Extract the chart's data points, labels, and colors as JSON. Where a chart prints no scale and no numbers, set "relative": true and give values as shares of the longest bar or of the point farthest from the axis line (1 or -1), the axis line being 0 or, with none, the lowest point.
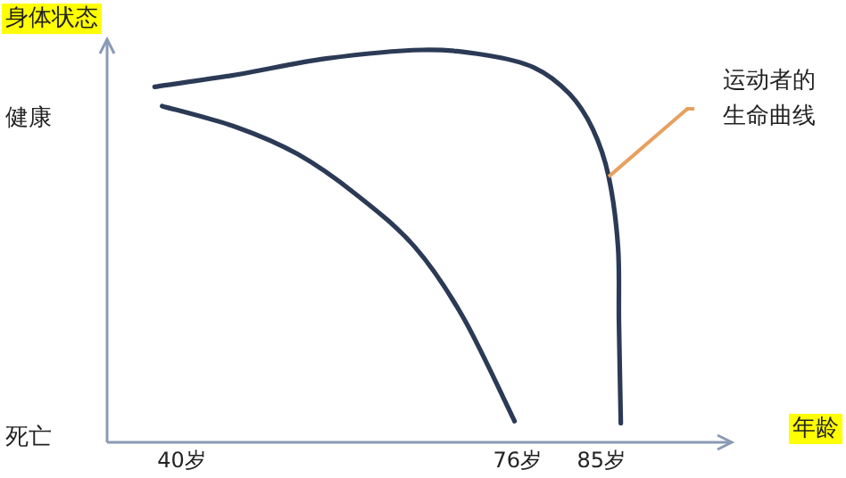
{
  "chart_data": {
    "type": "line",
    "ylabel": "身体状态",
    "xlabel": "年龄",
    "relative": true,
    "xlim": [
      32,
      99
    ],
    "xticks": [
      {
        "value": 40,
        "label": "40岁"
      },
      {
        "value": 76,
        "label": "76岁"
      },
      {
        "value": 85,
        "label": "85岁"
      }
    ],
    "marker": "none",
    "line_style": "solid",
    "series": [
      {
        "color": "#2b3a55",
        "x": [
          37.1,
          45.9,
          55.5,
          65.8,
          72.6,
          77.8,
          81.6,
          84.1,
          85.8,
          86.8,
          86.9,
          87.1
        ],
        "values": [
          0.906,
          0.937,
          0.978,
          1.0,
          0.987,
          0.955,
          0.888,
          0.798,
          0.677,
          0.498,
          0.305,
          0.049
        ]
      },
      {
        "color": "#2b3a55",
        "x": [
          37.9,
          45.9,
          52.4,
          58.7,
          65.0,
          70.2,
          75.7
        ],
        "values": [
          0.857,
          0.803,
          0.735,
          0.632,
          0.498,
          0.318,
          0.054
        ]
      }
    ],
    "annotations": [
      "健康",
      "死亡",
      {
        "text": "运动者的生命曲线",
        "x": 85.8,
        "y": 0.677
      }
    ]
  }
}
